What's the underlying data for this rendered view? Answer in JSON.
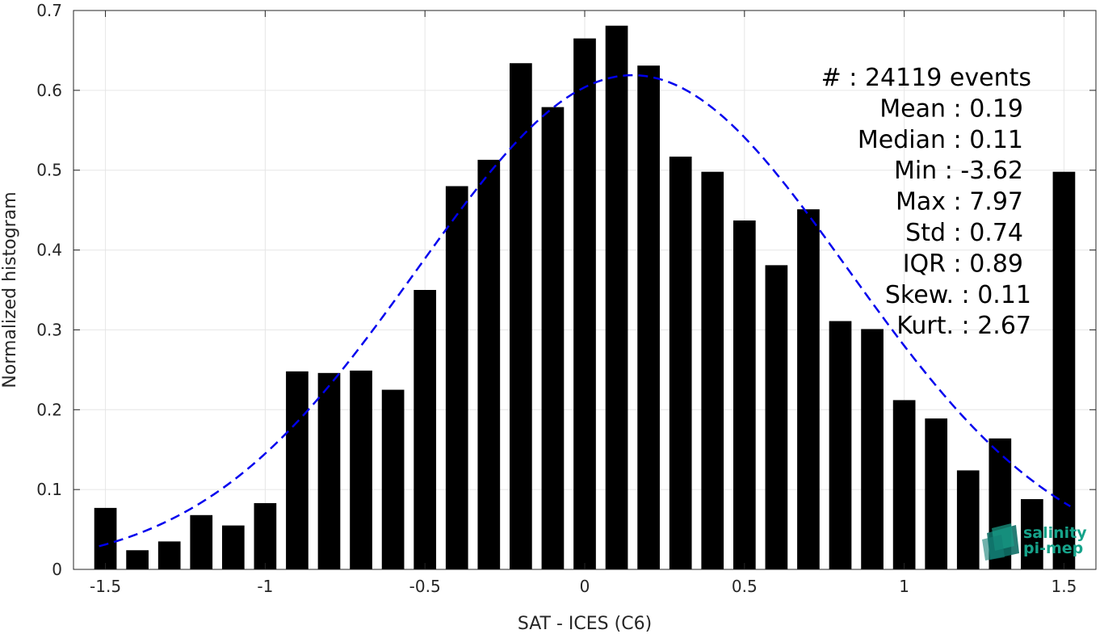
{
  "chart_data": {
    "type": "bar",
    "xlabel": "SAT - ICES (C6)",
    "ylabel": "Normalized histogram",
    "xlim": [
      -1.6,
      1.6
    ],
    "ylim": [
      0,
      0.7
    ],
    "xticks": [
      "-1.5",
      "-1",
      "-0.5",
      "0",
      "0.5",
      "1",
      "1.5"
    ],
    "yticks": [
      "0",
      "0.1",
      "0.2",
      "0.3",
      "0.4",
      "0.5",
      "0.6",
      "0.7"
    ],
    "grid": true,
    "bar_width": 0.07,
    "x": [
      -1.5,
      -1.4,
      -1.3,
      -1.2,
      -1.1,
      -1.0,
      -0.9,
      -0.8,
      -0.7,
      -0.6,
      -0.5,
      -0.4,
      -0.3,
      -0.2,
      -0.1,
      0.0,
      0.1,
      0.2,
      0.3,
      0.4,
      0.5,
      0.6,
      0.7,
      0.8,
      0.9,
      1.0,
      1.1,
      1.2,
      1.3,
      1.4,
      1.5
    ],
    "values": [
      0.077,
      0.024,
      0.035,
      0.068,
      0.055,
      0.083,
      0.248,
      0.246,
      0.249,
      0.225,
      0.35,
      0.48,
      0.513,
      0.634,
      0.579,
      0.665,
      0.681,
      0.631,
      0.517,
      0.498,
      0.437,
      0.381,
      0.451,
      0.311,
      0.301,
      0.212,
      0.189,
      0.124,
      0.164,
      0.088,
      0.498
    ],
    "fit": {
      "type": "gaussian",
      "mean": 0.15,
      "std": 0.675,
      "peak": 0.619,
      "x_range": [
        -1.52,
        1.52
      ],
      "color": "#0000ee",
      "style": "dashed"
    },
    "stats": [
      {
        "label": "#  : 24119 events",
        "offset": 10
      },
      {
        "label": "Mean : 0.19",
        "offset": 0
      },
      {
        "label": "Median : 0.11",
        "offset": 0
      },
      {
        "label": "Min : -3.62",
        "offset": 0
      },
      {
        "label": "Max : 7.97",
        "offset": 0
      },
      {
        "label": "Std : 0.74",
        "offset": 0
      },
      {
        "label": "IQR : 0.89",
        "offset": 0
      },
      {
        "label": "Skew. : 0.11",
        "offset": 10
      },
      {
        "label": "Kurt. : 2.67",
        "offset": 10
      }
    ]
  },
  "logo": {
    "line1": "salinity",
    "line2": "pi-mep",
    "color": "#16a38a"
  }
}
